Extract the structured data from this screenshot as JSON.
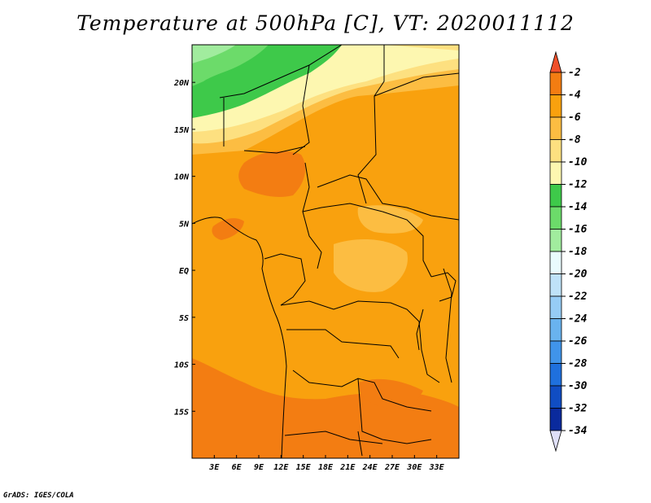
{
  "title": "Temperature at 500hPa [C], VT: 2020011112",
  "credit": "GrADS: IGES/COLA",
  "map": {
    "lon_range": [
      0,
      36
    ],
    "lat_range": [
      -20,
      24
    ],
    "xticks": [
      {
        "lon": 3,
        "label": "3E"
      },
      {
        "lon": 6,
        "label": "6E"
      },
      {
        "lon": 9,
        "label": "9E"
      },
      {
        "lon": 12,
        "label": "12E"
      },
      {
        "lon": 15,
        "label": "15E"
      },
      {
        "lon": 18,
        "label": "18E"
      },
      {
        "lon": 21,
        "label": "21E"
      },
      {
        "lon": 24,
        "label": "24E"
      },
      {
        "lon": 27,
        "label": "27E"
      },
      {
        "lon": 30,
        "label": "30E"
      },
      {
        "lon": 33,
        "label": "33E"
      }
    ],
    "yticks": [
      {
        "lat": 20,
        "label": "20N"
      },
      {
        "lat": 15,
        "label": "15N"
      },
      {
        "lat": 10,
        "label": "10N"
      },
      {
        "lat": 5,
        "label": "5N"
      },
      {
        "lat": 0,
        "label": "EQ"
      },
      {
        "lat": -5,
        "label": "5S"
      },
      {
        "lat": -10,
        "label": "10S"
      },
      {
        "lat": -15,
        "label": "15S"
      }
    ]
  },
  "colorbar": {
    "labels": [
      "-2",
      "-4",
      "-6",
      "-8",
      "-10",
      "-12",
      "-14",
      "-16",
      "-18",
      "-20",
      "-22",
      "-24",
      "-26",
      "-28",
      "-30",
      "-32",
      "-34"
    ],
    "colors": [
      "#f0502a",
      "#f37d12",
      "#f9a10e",
      "#fcbd42",
      "#fde080",
      "#fdf7b0",
      "#3ec94a",
      "#6cdb6a",
      "#a1ec9e",
      "#e9fbfd",
      "#bfe2f8",
      "#96ccf5",
      "#69b3ef",
      "#4094ea",
      "#1f70dd",
      "#104dc3",
      "#0a2a9d",
      "#12106e",
      "#e0e0f8"
    ]
  }
}
